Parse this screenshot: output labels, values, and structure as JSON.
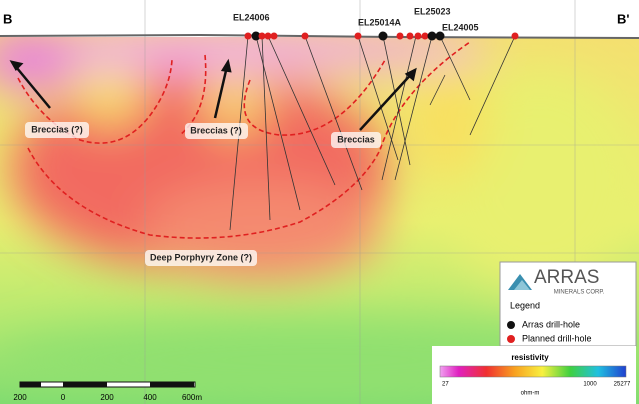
{
  "section": {
    "left_end": "B",
    "right_end": "B'"
  },
  "drill_labels": [
    "EL24006",
    "EL25014A",
    "EL25023",
    "EL24005"
  ],
  "zones": [
    "Breccias (?)",
    "Breccias (?)",
    "Breccias",
    "Deep Porphyry Zone (?)"
  ],
  "logo": {
    "name": "ARRAS",
    "subtitle": "MINERALS CORP."
  },
  "legend": {
    "title": "Legend",
    "items": [
      "Arras drill-hole",
      "Planned drill-hole"
    ]
  },
  "colorbar": {
    "title": "resistivity",
    "labels": [
      "27",
      "1000",
      "25277"
    ],
    "unit": "ohm-m"
  },
  "scale_bar": {
    "labels": [
      "200",
      "0",
      "200",
      "400",
      "600m"
    ]
  }
}
